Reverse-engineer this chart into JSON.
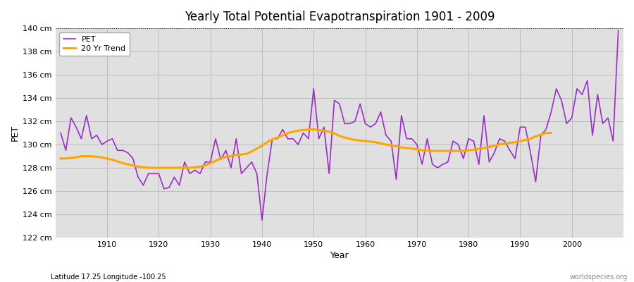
{
  "title": "Yearly Total Potential Evapotranspiration 1901 - 2009",
  "xlabel": "Year",
  "ylabel": "PET",
  "bottom_left_label": "Latitude 17.25 Longitude -100.25",
  "bottom_right_label": "worldspecies.org",
  "ylim": [
    122,
    140
  ],
  "ytick_step": 2,
  "pet_color": "#9B2EC8",
  "trend_color": "#FFA500",
  "bg_color": "#E0E0E0",
  "years": [
    1901,
    1902,
    1903,
    1904,
    1905,
    1906,
    1907,
    1908,
    1909,
    1910,
    1911,
    1912,
    1913,
    1914,
    1915,
    1916,
    1917,
    1918,
    1919,
    1920,
    1921,
    1922,
    1923,
    1924,
    1925,
    1926,
    1927,
    1928,
    1929,
    1930,
    1931,
    1932,
    1933,
    1934,
    1935,
    1936,
    1937,
    1938,
    1939,
    1940,
    1941,
    1942,
    1943,
    1944,
    1945,
    1946,
    1947,
    1948,
    1949,
    1950,
    1951,
    1952,
    1953,
    1954,
    1955,
    1956,
    1957,
    1958,
    1959,
    1960,
    1961,
    1962,
    1963,
    1964,
    1965,
    1966,
    1967,
    1968,
    1969,
    1970,
    1971,
    1972,
    1973,
    1974,
    1975,
    1976,
    1977,
    1978,
    1979,
    1980,
    1981,
    1982,
    1983,
    1984,
    1985,
    1986,
    1987,
    1988,
    1989,
    1990,
    1991,
    1992,
    1993,
    1994,
    1995,
    1996,
    1997,
    1998,
    1999,
    2000,
    2001,
    2002,
    2003,
    2004,
    2005,
    2006,
    2007,
    2008,
    2009
  ],
  "pet_values": [
    131.0,
    129.5,
    132.3,
    131.5,
    130.5,
    132.5,
    130.5,
    130.8,
    130.0,
    130.3,
    130.5,
    129.5,
    129.5,
    129.3,
    128.8,
    127.2,
    126.5,
    127.5,
    127.5,
    127.5,
    126.2,
    126.3,
    127.2,
    126.5,
    128.5,
    127.5,
    127.8,
    127.5,
    128.5,
    128.5,
    130.5,
    128.7,
    129.5,
    128.0,
    130.5,
    127.5,
    128.0,
    128.5,
    127.5,
    123.5,
    127.5,
    130.5,
    130.5,
    131.3,
    130.5,
    130.5,
    130.0,
    131.0,
    130.5,
    134.8,
    130.5,
    131.5,
    127.5,
    133.8,
    133.5,
    131.8,
    131.8,
    132.0,
    133.5,
    131.8,
    131.5,
    131.8,
    132.8,
    130.8,
    130.3,
    127.0,
    132.5,
    130.5,
    130.5,
    130.0,
    128.3,
    130.5,
    128.3,
    128.0,
    128.3,
    128.5,
    130.3,
    130.0,
    128.8,
    130.5,
    130.3,
    128.3,
    132.5,
    128.5,
    129.3,
    130.5,
    130.3,
    129.5,
    128.8,
    131.5,
    131.5,
    129.3,
    126.8,
    130.8,
    131.3,
    132.8,
    134.8,
    133.8,
    131.8,
    132.3,
    134.8,
    134.3,
    135.5,
    130.8,
    134.3,
    131.8,
    132.3,
    130.3,
    139.8
  ],
  "trend_values": [
    128.8,
    128.8,
    128.85,
    128.9,
    129.0,
    129.0,
    129.0,
    128.95,
    128.9,
    128.8,
    128.7,
    128.55,
    128.4,
    128.3,
    128.2,
    128.1,
    128.05,
    128.0,
    128.0,
    128.0,
    128.0,
    128.0,
    128.0,
    128.0,
    128.0,
    128.0,
    128.05,
    128.1,
    128.2,
    128.4,
    128.6,
    128.8,
    128.95,
    129.0,
    129.1,
    129.15,
    129.2,
    129.4,
    129.65,
    129.9,
    130.2,
    130.45,
    130.6,
    130.8,
    131.0,
    131.1,
    131.2,
    131.25,
    131.3,
    131.3,
    131.25,
    131.2,
    131.1,
    130.95,
    130.75,
    130.6,
    130.5,
    130.4,
    130.35,
    130.3,
    130.25,
    130.2,
    130.1,
    130.0,
    129.95,
    129.85,
    129.75,
    129.7,
    129.65,
    129.6,
    129.5,
    129.5,
    129.45,
    129.45,
    129.45,
    129.45,
    129.45,
    129.45,
    129.45,
    129.5,
    129.55,
    129.65,
    129.7,
    129.8,
    129.9,
    130.0,
    130.1,
    130.15,
    130.2,
    130.3,
    130.4,
    130.5,
    130.7,
    130.85,
    131.0,
    131.0,
    null,
    null,
    null,
    null,
    null,
    null,
    null,
    null,
    null,
    null,
    null,
    null,
    null
  ]
}
